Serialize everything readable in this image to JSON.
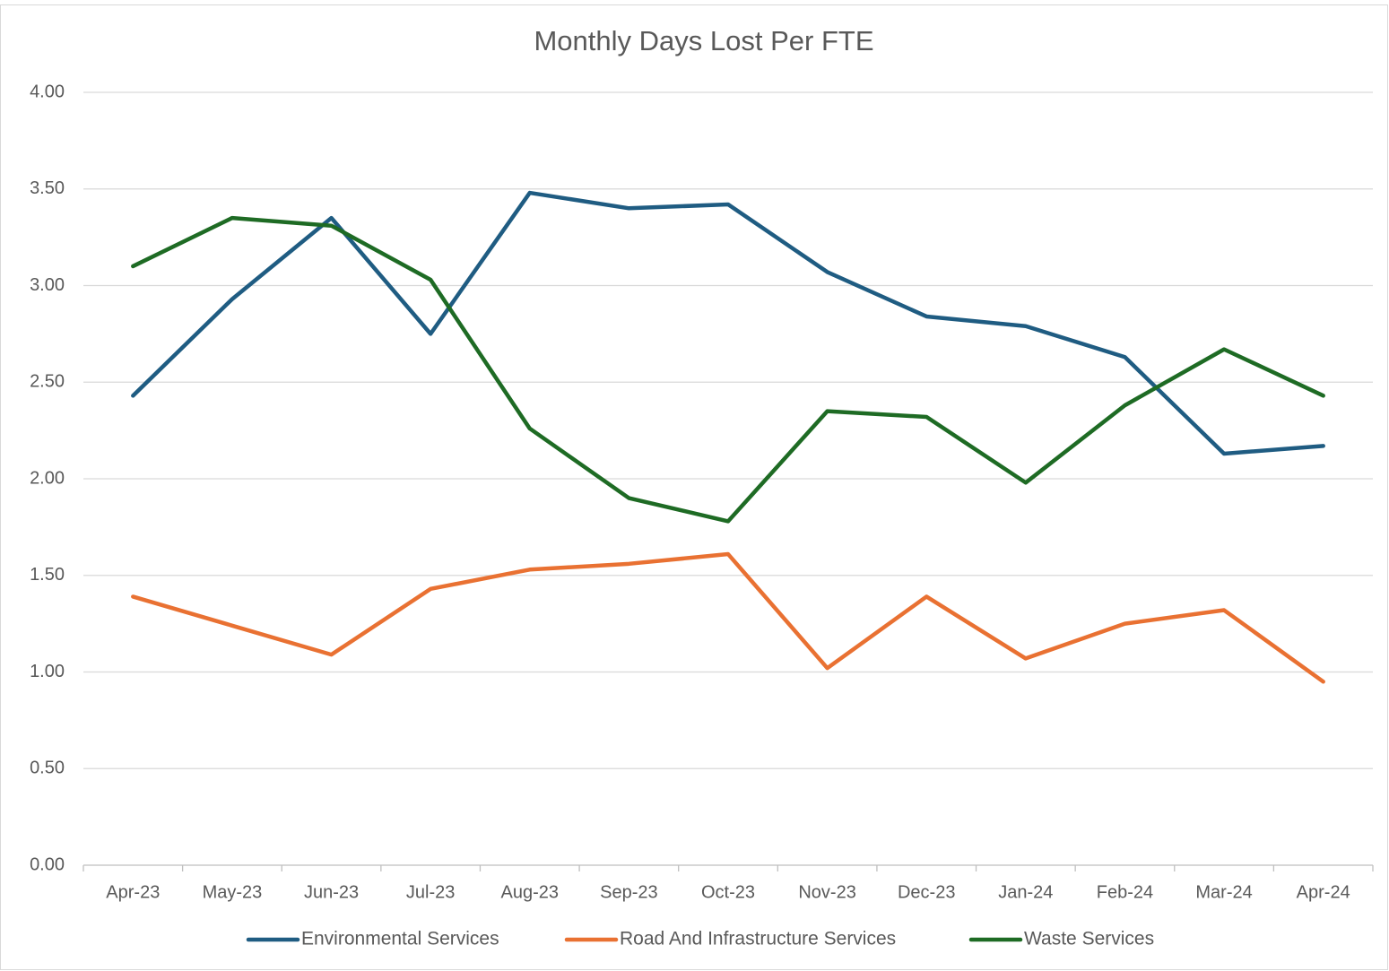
{
  "chart_data": {
    "type": "line",
    "title": "Monthly Days Lost Per FTE",
    "categories": [
      "Apr-23",
      "May-23",
      "Jun-23",
      "Jul-23",
      "Aug-23",
      "Sep-23",
      "Oct-23",
      "Nov-23",
      "Dec-23",
      "Jan-24",
      "Feb-24",
      "Mar-24",
      "Apr-24"
    ],
    "series": [
      {
        "name": "Environmental Services",
        "color": "#1f5c82",
        "values": [
          2.43,
          2.93,
          3.35,
          2.75,
          3.48,
          3.4,
          3.42,
          3.07,
          2.84,
          2.79,
          2.63,
          2.13,
          2.17
        ]
      },
      {
        "name": "Road And Infrastructure Services",
        "color": "#e97132",
        "values": [
          1.39,
          1.24,
          1.09,
          1.43,
          1.53,
          1.56,
          1.61,
          1.02,
          1.39,
          1.07,
          1.25,
          1.32,
          0.95
        ]
      },
      {
        "name": "Waste Services",
        "color": "#1e6b24",
        "values": [
          3.1,
          3.35,
          3.31,
          3.03,
          2.26,
          1.9,
          1.78,
          2.35,
          2.32,
          1.98,
          2.38,
          2.67,
          2.43
        ]
      }
    ],
    "ylim": [
      0,
      4
    ],
    "yticks": [
      {
        "value": 0,
        "label": "0.00"
      },
      {
        "value": 0.5,
        "label": "0.50"
      },
      {
        "value": 1,
        "label": "1.00"
      },
      {
        "value": 1.5,
        "label": "1.50"
      },
      {
        "value": 2,
        "label": "2.00"
      },
      {
        "value": 2.5,
        "label": "2.50"
      },
      {
        "value": 3,
        "label": "3.00"
      },
      {
        "value": 3.5,
        "label": "3.50"
      },
      {
        "value": 4,
        "label": "4.00"
      }
    ],
    "grid": true,
    "legend": "bottom"
  }
}
